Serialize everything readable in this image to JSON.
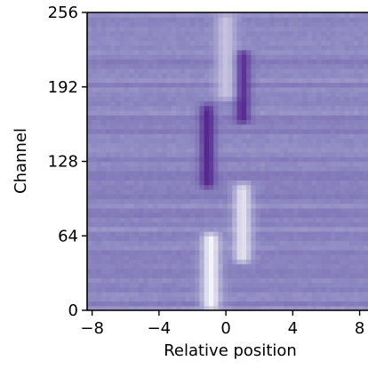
{
  "chart_data": {
    "type": "heatmap",
    "title": "",
    "xlabel": "Relative position",
    "ylabel": "Channel",
    "xlim": [
      -8.3,
      8.5
    ],
    "ylim": [
      0,
      256
    ],
    "xticks": [
      -8,
      -4,
      0,
      4,
      8
    ],
    "xtick_labels": [
      "−8",
      "−4",
      "0",
      "4",
      "8"
    ],
    "yticks": [
      0,
      64,
      128,
      192,
      256
    ],
    "ytick_labels": [
      "0",
      "64",
      "128",
      "192",
      "256"
    ],
    "colormap": {
      "low": "#ffffff",
      "mid": "#8b86c0",
      "high": "#4a1486"
    },
    "background_level": 0.5,
    "features": [
      {
        "label": "bright band",
        "x_center": -0.9,
        "x_halfwidth": 0.55,
        "y_range": [
          0,
          68
        ],
        "level": 0.05
      },
      {
        "label": "dark band",
        "x_center": -1.1,
        "x_halfwidth": 0.45,
        "y_range": [
          105,
          178
        ],
        "level": 0.92
      },
      {
        "label": "bright band",
        "x_center": 1.0,
        "x_halfwidth": 0.55,
        "y_range": [
          40,
          110
        ],
        "level": 0.12
      },
      {
        "label": "dark band",
        "x_center": 1.0,
        "x_halfwidth": 0.45,
        "y_range": [
          160,
          225
        ],
        "level": 0.9
      },
      {
        "label": "bright streak",
        "x_center": 0.0,
        "x_halfwidth": 0.6,
        "y_range": [
          180,
          256
        ],
        "level": 0.25
      }
    ]
  }
}
